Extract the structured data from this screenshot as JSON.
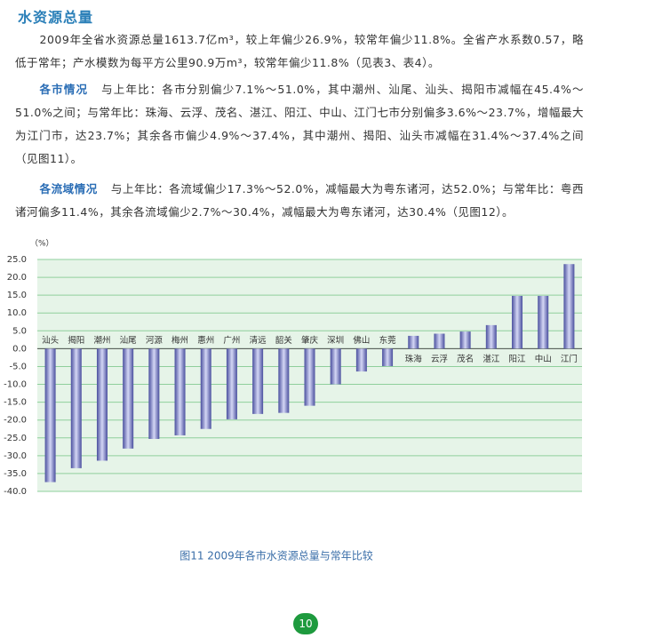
{
  "document": {
    "title": "水资源总量",
    "paragraphs": [
      {
        "body": "2009年全省水资源总量1613.7亿m³，较上年偏少26.9%，较常年偏少11.8%。全省产水系数0.57，略低于常年；产水模数为每平方公里90.9万m³，较常年偏少11.8%（见表3、表4）。"
      },
      {
        "heading": "各市情况",
        "body": "与上年比：各市分别偏少7.1%～51.0%，其中潮州、汕尾、汕头、揭阳市减幅在45.4%～51.0%之间；与常年比：珠海、云浮、茂名、湛江、阳江、中山、江门七市分别偏多3.6%～23.7%，增幅最大为江门市，达23.7%；其余各市偏少4.9%～37.4%，其中潮州、揭阳、汕头市减幅在31.4%～37.4%之间（见图11）。"
      },
      {
        "heading": "各流域情况",
        "body": "与上年比：各流域偏少17.3%～52.0%，减幅最大为粤东诸河，达52.0%；与常年比：粤西诸河偏多11.4%，其余各流域偏少2.7%～30.4%，减幅最大为粤东诸河，达30.4%（见图12）。"
      }
    ],
    "page_number": "10"
  },
  "chart_data": {
    "type": "bar",
    "title": "图11  2009年各市水资源总量与常年比较",
    "ylabel": "（%）",
    "categories": [
      "汕头",
      "揭阳",
      "潮州",
      "汕尾",
      "河源",
      "梅州",
      "惠州",
      "广州",
      "清远",
      "韶关",
      "肇庆",
      "深圳",
      "佛山",
      "东莞",
      "珠海",
      "云浮",
      "茂名",
      "湛江",
      "阳江",
      "中山",
      "江门"
    ],
    "values": [
      -37.4,
      -33.5,
      -31.4,
      -28.0,
      -25.3,
      -24.3,
      -22.5,
      -19.8,
      -18.3,
      -18.0,
      -16.0,
      -10.0,
      -6.4,
      -4.9,
      3.6,
      4.2,
      4.8,
      6.6,
      14.8,
      14.8,
      23.7
    ],
    "color": "#4a4f9e",
    "ylim": [
      -40,
      25
    ],
    "yticks": [
      {
        "value": 25,
        "label": "25.0"
      },
      {
        "value": 20,
        "label": "20.0"
      },
      {
        "value": 15,
        "label": "15.0"
      },
      {
        "value": 10,
        "label": "10.0"
      },
      {
        "value": 5,
        "label": "5.0"
      },
      {
        "value": 0,
        "label": "0.0"
      },
      {
        "value": -5,
        "label": "-5.0"
      },
      {
        "value": -10,
        "label": "-10.0"
      },
      {
        "value": -15,
        "label": "-15.0"
      },
      {
        "value": -20,
        "label": "-20.0"
      },
      {
        "value": -25,
        "label": "-25.0"
      },
      {
        "value": -30,
        "label": "-30.0"
      },
      {
        "value": -35,
        "label": "-35.0"
      },
      {
        "value": -40,
        "label": "-40.0"
      }
    ],
    "grid": true
  }
}
